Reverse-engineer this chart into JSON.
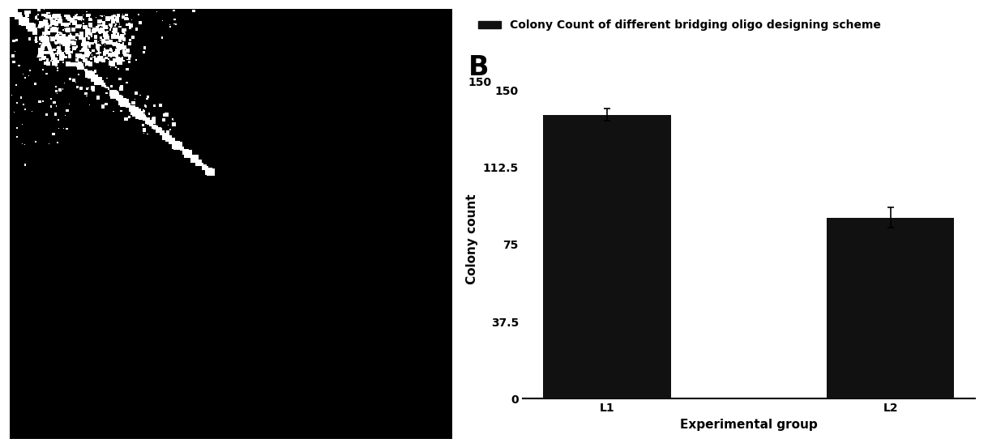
{
  "title": "Colony Count of different bridging oligo designing scheme",
  "categories": [
    "L1",
    "L2"
  ],
  "values": [
    138,
    88
  ],
  "errors": [
    3,
    5
  ],
  "bar_color": "#111111",
  "ylabel": "Colony count",
  "xlabel": "Experimental group",
  "yticks": [
    0,
    37.5,
    75,
    112.5,
    150
  ],
  "ylim": [
    0,
    155
  ],
  "panel_label": "B",
  "legend_label": "Colony Count of different bridging oligo designing scheme",
  "title_fontsize": 10,
  "label_fontsize": 11,
  "tick_fontsize": 10,
  "panel_label_fontsize": 24,
  "bar_width": 0.45
}
